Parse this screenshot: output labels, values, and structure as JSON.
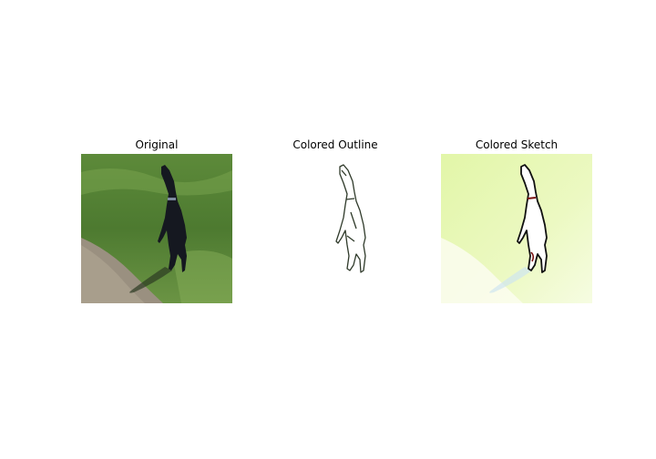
{
  "panels": [
    {
      "title": "Original",
      "image": "photo of black dog standing upright on hind legs in grass"
    },
    {
      "title": "Colored Outline",
      "image": "line-outline sketch of the dog on white"
    },
    {
      "title": "Colored Sketch",
      "image": "pale green sketch with white dog silhouette"
    }
  ],
  "colors": {
    "grass_dark": "#4f7a32",
    "grass_light": "#7fa852",
    "path": "#9a9080",
    "dog": "#151820",
    "sketch_bg": "#e8f7b6",
    "sketch_bg_light": "#f4fbd8",
    "outline_stroke": "#2f3a2a"
  }
}
